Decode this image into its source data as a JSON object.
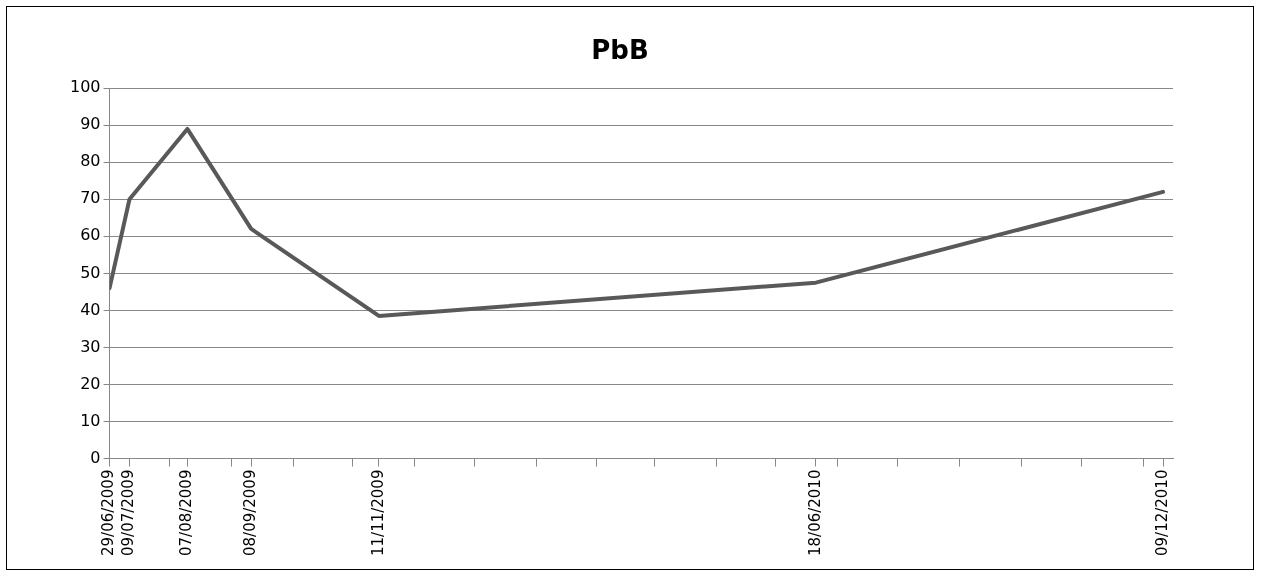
{
  "chart_data": {
    "type": "line",
    "title": "PbB",
    "x": [
      "2009-06-29",
      "2009-07-09",
      "2009-08-07",
      "2009-09-08",
      "2009-11-11",
      "2010-06-18",
      "2010-12-09"
    ],
    "series": [
      {
        "color": "#595959",
        "values": [
          46,
          70,
          89,
          62,
          38.5,
          47.5,
          72
        ]
      }
    ],
    "xlim": [
      "2009-06-29",
      "2010-12-14"
    ],
    "xticks": [
      {
        "value": "2009-06-29",
        "label": "29/06/2009"
      },
      {
        "value": "2009-07-09",
        "label": "09/07/2009"
      },
      {
        "value": "2009-07-29",
        "label": null
      },
      {
        "value": "2009-08-07",
        "label": "07/08/2009"
      },
      {
        "value": "2009-08-29",
        "label": null
      },
      {
        "value": "2009-09-08",
        "label": "08/09/2009"
      },
      {
        "value": "2009-09-29",
        "label": null
      },
      {
        "value": "2009-10-29",
        "label": null
      },
      {
        "value": "2009-11-11",
        "label": "11/11/2009"
      },
      {
        "value": "2009-11-29",
        "label": null
      },
      {
        "value": "2009-12-29",
        "label": null
      },
      {
        "value": "2010-01-29",
        "label": null
      },
      {
        "value": "2010-02-28",
        "label": null
      },
      {
        "value": "2010-03-29",
        "label": null
      },
      {
        "value": "2010-04-29",
        "label": null
      },
      {
        "value": "2010-05-29",
        "label": null
      },
      {
        "value": "2010-06-18",
        "label": "18/06/2010"
      },
      {
        "value": "2010-06-29",
        "label": null
      },
      {
        "value": "2010-07-29",
        "label": null
      },
      {
        "value": "2010-08-29",
        "label": null
      },
      {
        "value": "2010-09-29",
        "label": null
      },
      {
        "value": "2010-10-29",
        "label": null
      },
      {
        "value": "2010-11-29",
        "label": null
      },
      {
        "value": "2010-12-09",
        "label": "09/12/2010"
      }
    ],
    "ylim": [
      0,
      100
    ],
    "yticks": [
      0,
      10,
      20,
      30,
      40,
      50,
      60,
      70,
      80,
      90,
      100
    ],
    "grid": "y",
    "marker": "none",
    "line_style": "solid",
    "legend": false
  }
}
